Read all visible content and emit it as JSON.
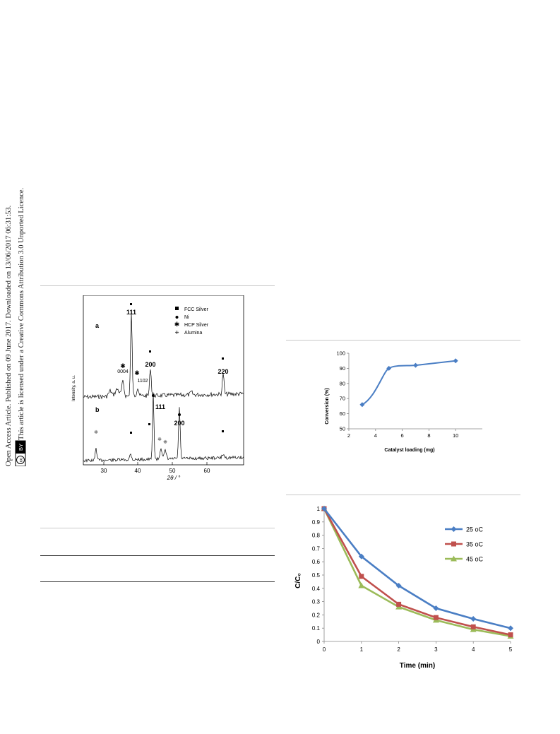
{
  "side_notice": {
    "line1": "Open Access Article. Published on 09 June 2017. Downloaded on 13/06/2017 06:31:53.",
    "line2": "This article is licensed under a Creative Commons Attribution 3.0 Unported Licence.",
    "badge_cc": "cc",
    "badge_by": "BY"
  },
  "xrd_figure": {
    "ylabel": "Intensity, a. u.",
    "xlabel": "2θ / °",
    "panel_a": "a",
    "panel_b": "b",
    "legend": [
      "FCC Silver",
      "Ni",
      "HCP Silver",
      "Alumina"
    ],
    "peaks_a": [
      "111",
      "200",
      "220",
      "0004",
      "1102"
    ],
    "peaks_b": [
      "111",
      "200"
    ],
    "x_ticks": [
      "30",
      "40",
      "50",
      "60"
    ]
  },
  "chart_data": [
    {
      "type": "line",
      "xlabel": "Catalyst loading (mg)",
      "ylabel": "Conversion (%)",
      "x": [
        3,
        5,
        7,
        10
      ],
      "series": [
        {
          "values": [
            66,
            90,
            92,
            95
          ],
          "color": "#4a7ec4"
        }
      ],
      "xlim": [
        2,
        12
      ],
      "ylim": [
        50,
        100
      ],
      "x_ticks": [
        "2",
        "4",
        "6",
        "8",
        "10"
      ],
      "y_ticks": [
        "50",
        "60",
        "70",
        "80",
        "90",
        "100"
      ]
    },
    {
      "type": "line",
      "xlabel": "Time (min)",
      "ylabel": "C/C₀",
      "x": [
        0,
        1,
        2,
        3,
        4,
        5
      ],
      "xlim": [
        0,
        5
      ],
      "ylim": [
        0,
        1
      ],
      "legend_position": "top-right",
      "x_ticks": [
        "0",
        "1",
        "2",
        "3",
        "4",
        "5"
      ],
      "y_ticks": [
        "0",
        "0.1",
        "0.2",
        "0.3",
        "0.4",
        "0.5",
        "0.6",
        "0.7",
        "0.8",
        "0.9",
        "1"
      ],
      "series": [
        {
          "name": "25 oC",
          "values": [
            1,
            0.64,
            0.42,
            0.25,
            0.17,
            0.1
          ],
          "color": "#4a7ec4",
          "marker": "diamond"
        },
        {
          "name": "35 oC",
          "values": [
            1,
            0.49,
            0.28,
            0.18,
            0.11,
            0.05
          ],
          "color": "#c0504d",
          "marker": "square"
        },
        {
          "name": "45 oC",
          "values": [
            1,
            0.42,
            0.26,
            0.16,
            0.09,
            0.04
          ],
          "color": "#9bbb59",
          "marker": "triangle"
        }
      ]
    }
  ]
}
